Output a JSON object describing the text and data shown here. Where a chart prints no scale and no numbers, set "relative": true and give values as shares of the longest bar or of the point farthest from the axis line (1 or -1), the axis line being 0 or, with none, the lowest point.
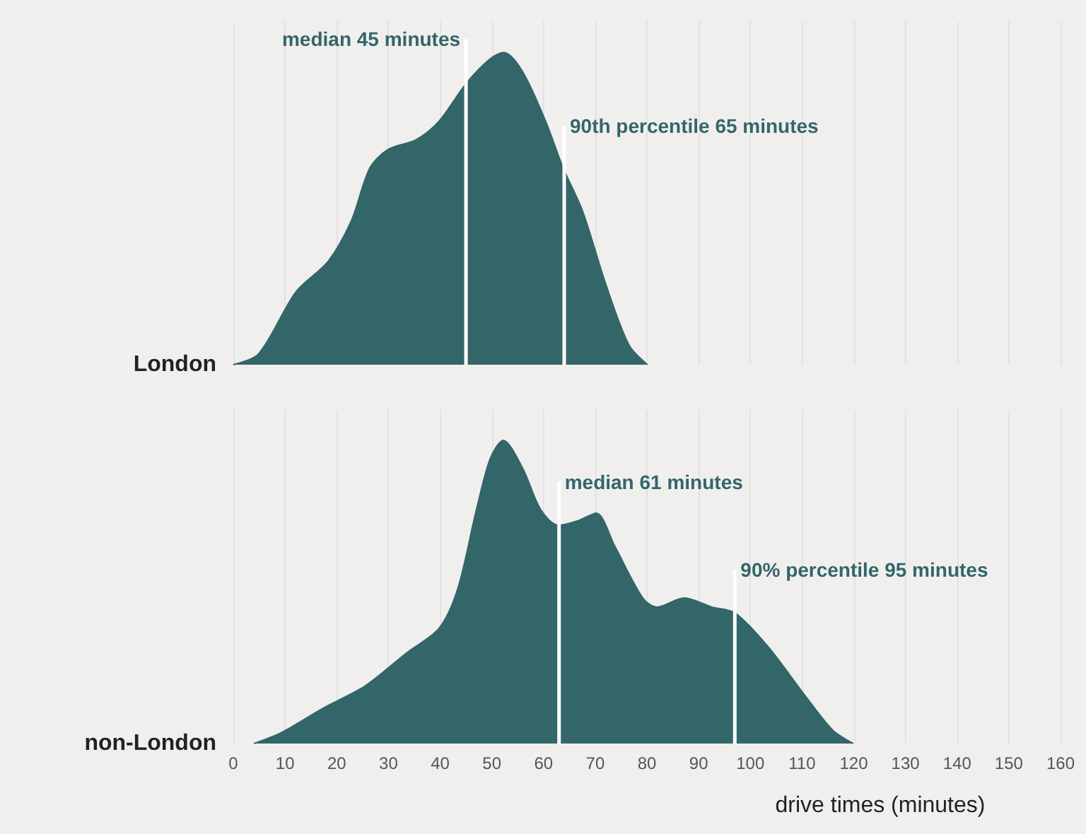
{
  "chart_data": [
    {
      "type": "area",
      "ylabel": "London",
      "relative": true,
      "color": "#336669",
      "xlim": [
        0,
        160
      ],
      "xticks": [
        0,
        10,
        20,
        30,
        40,
        50,
        60,
        70,
        80,
        90,
        100,
        110,
        120,
        130,
        140,
        150,
        160
      ],
      "grid": "x",
      "tick_labels": false,
      "x": [
        0,
        4.9,
        12.1,
        18.3,
        22.8,
        26.4,
        30.0,
        35.3,
        39.8,
        45.0,
        49.7,
        52.3,
        55.9,
        60.4,
        63.8,
        67.6,
        72.0,
        76.5,
        80.1
      ],
      "values": [
        0,
        0.035,
        0.233,
        0.33,
        0.46,
        0.63,
        0.69,
        0.72,
        0.78,
        0.9,
        0.98,
        1,
        0.94,
        0.78,
        0.63,
        0.49,
        0.26,
        0.064,
        0
      ],
      "ref_lines": [
        {
          "axis": "x",
          "value": 45,
          "label": "median 45 minutes",
          "color": "#ffffff"
        },
        {
          "axis": "x",
          "value": 64,
          "label": "90th percentile 65 minutes",
          "color": "#ffffff"
        }
      ]
    },
    {
      "type": "area",
      "ylabel": "non-London",
      "xlabel": "drive times (minutes)",
      "relative": true,
      "color": "#336669",
      "xlim": [
        0,
        160
      ],
      "xticks": [
        0,
        10,
        20,
        30,
        40,
        50,
        60,
        70,
        80,
        90,
        100,
        110,
        120,
        130,
        140,
        150,
        160
      ],
      "grid": "x",
      "tick_labels": "x",
      "x": [
        4.0,
        9.4,
        17.4,
        25.5,
        33.6,
        39.8,
        43.4,
        47.0,
        49.7,
        52.2,
        55.9,
        59.5,
        62.9,
        66.7,
        70.2,
        73.8,
        79.2,
        81.9,
        87.2,
        92.6,
        97.1,
        103.4,
        110.5,
        115.9,
        119.9
      ],
      "values": [
        0,
        0.037,
        0.117,
        0.19,
        0.3,
        0.38,
        0.51,
        0.77,
        0.94,
        1,
        0.91,
        0.77,
        0.72,
        0.735,
        0.76,
        0.65,
        0.48,
        0.45,
        0.48,
        0.45,
        0.43,
        0.32,
        0.16,
        0.045,
        0
      ],
      "ref_lines": [
        {
          "axis": "x",
          "value": 63,
          "label": "median 61 minutes",
          "color": "#ffffff"
        },
        {
          "axis": "x",
          "value": 97,
          "label": "90% percentile 95 minutes",
          "color": "#ffffff"
        }
      ]
    }
  ]
}
